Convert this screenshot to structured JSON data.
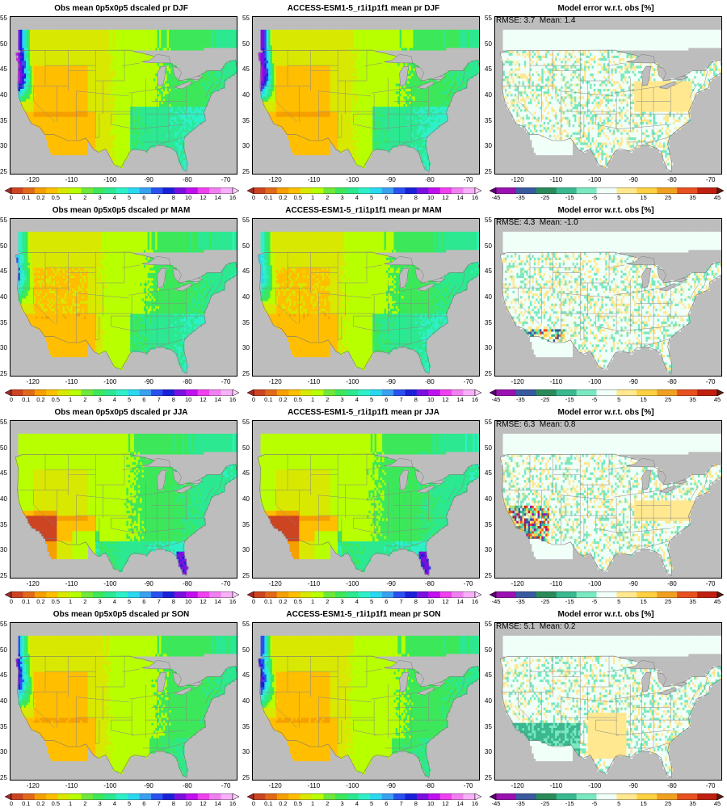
{
  "panels": [
    {
      "title": "Obs mean 0p5x0p5 dscaled pr DJF",
      "type": "obs",
      "season": "DJF"
    },
    {
      "title": "ACCESS-ESM1-5_r1i1p1f1 mean pr DJF",
      "type": "model",
      "season": "DJF"
    },
    {
      "title": "Model error w.r.t. obs [%]",
      "type": "error",
      "season": "DJF",
      "stats": "RMSE: 3.7  Mean: 1.4"
    },
    {
      "title": "Obs mean 0p5x0p5 dscaled pr MAM",
      "type": "obs",
      "season": "MAM"
    },
    {
      "title": "ACCESS-ESM1-5_r1i1p1f1 mean pr MAM",
      "type": "model",
      "season": "MAM"
    },
    {
      "title": "Model error w.r.t. obs [%]",
      "type": "error",
      "season": "MAM",
      "stats": "RMSE: 4.3  Mean: -1.0"
    },
    {
      "title": "Obs mean 0p5x0p5 dscaled pr JJA",
      "type": "obs",
      "season": "JJA"
    },
    {
      "title": "ACCESS-ESM1-5_r1i1p1f1 mean pr JJA",
      "type": "model",
      "season": "JJA"
    },
    {
      "title": "Model error w.r.t. obs [%]",
      "type": "error",
      "season": "JJA",
      "stats": "RMSE: 6.3  Mean: 0.8"
    },
    {
      "title": "Obs mean 0p5x0p5 dscaled pr SON",
      "type": "obs",
      "season": "SON"
    },
    {
      "title": "ACCESS-ESM1-5_r1i1p1f1 mean pr SON",
      "type": "model",
      "season": "SON"
    },
    {
      "title": "Model error w.r.t. obs [%]",
      "type": "error",
      "season": "SON",
      "stats": "RMSE: 5.1  Mean: 0.2"
    }
  ],
  "axes": {
    "lat_ticks": [
      "55",
      "50",
      "45",
      "40",
      "35",
      "30",
      "25"
    ],
    "lon_ticks": [
      "-120",
      "-110",
      "-100",
      "-90",
      "-80",
      "-70"
    ],
    "lat_range": [
      24.5,
      55.5
    ],
    "lon_range": [
      -126,
      -67
    ]
  },
  "colorbars": {
    "precip": {
      "labels": [
        "0",
        "0.1",
        "0.2",
        "0.5",
        "1",
        "2",
        "3",
        "4",
        "5",
        "6",
        "7",
        "8",
        "10",
        "12",
        "14",
        "16"
      ],
      "colors": [
        "#a52a2a",
        "#cc4422",
        "#e06a1a",
        "#f5a000",
        "#ffbe00",
        "#d8e800",
        "#b8ff00",
        "#6ee83a",
        "#3ce85a",
        "#2ce890",
        "#2ef0c8",
        "#2ad8f0",
        "#3aa0f0",
        "#2a50f0",
        "#1a20d8",
        "#7a10e0",
        "#c010f0",
        "#f040f0",
        "#f080f0",
        "#f8b0f8",
        "#ffd0ff"
      ]
    },
    "error": {
      "labels": [
        "-45",
        "-35",
        "-25",
        "-15",
        "-5",
        "5",
        "15",
        "25",
        "35",
        "45"
      ],
      "colors": [
        "#5a0070",
        "#9a10b0",
        "#3a5aa0",
        "#2a8a5a",
        "#3ab890",
        "#7ae8c0",
        "#f0fff8",
        "#ffe890",
        "#ffd040",
        "#f0a020",
        "#e85020",
        "#c02010",
        "#5a1a10"
      ]
    }
  }
}
